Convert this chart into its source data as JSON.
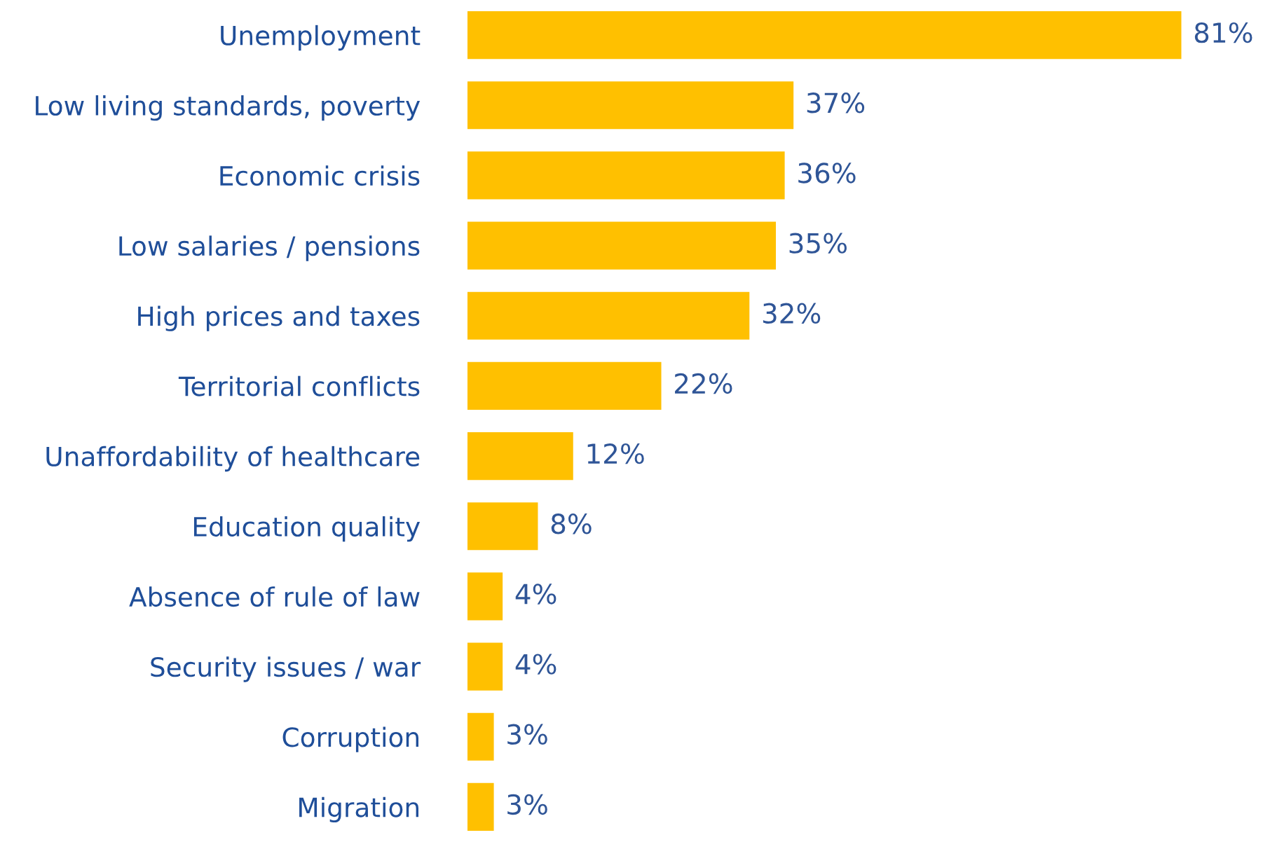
{
  "chart_data": {
    "type": "bar",
    "orientation": "horizontal",
    "categories": [
      "Unemployment",
      "Low living standards, poverty",
      "Economic crisis",
      "Low salaries / pensions",
      "High prices and taxes",
      "Territorial conflicts",
      "Unaffordability of healthcare",
      "Education quality",
      "Absence of rule of law",
      "Security issues / war",
      "Corruption",
      "Migration"
    ],
    "values": [
      81,
      37,
      36,
      35,
      32,
      22,
      12,
      8,
      4,
      4,
      3,
      3
    ],
    "value_labels": [
      "81%",
      "37%",
      "36%",
      "35%",
      "32%",
      "22%",
      "12%",
      "8%",
      "4%",
      "4%",
      "3%",
      "3%"
    ],
    "color": "#ffc000",
    "grid": false,
    "legend": false
  }
}
